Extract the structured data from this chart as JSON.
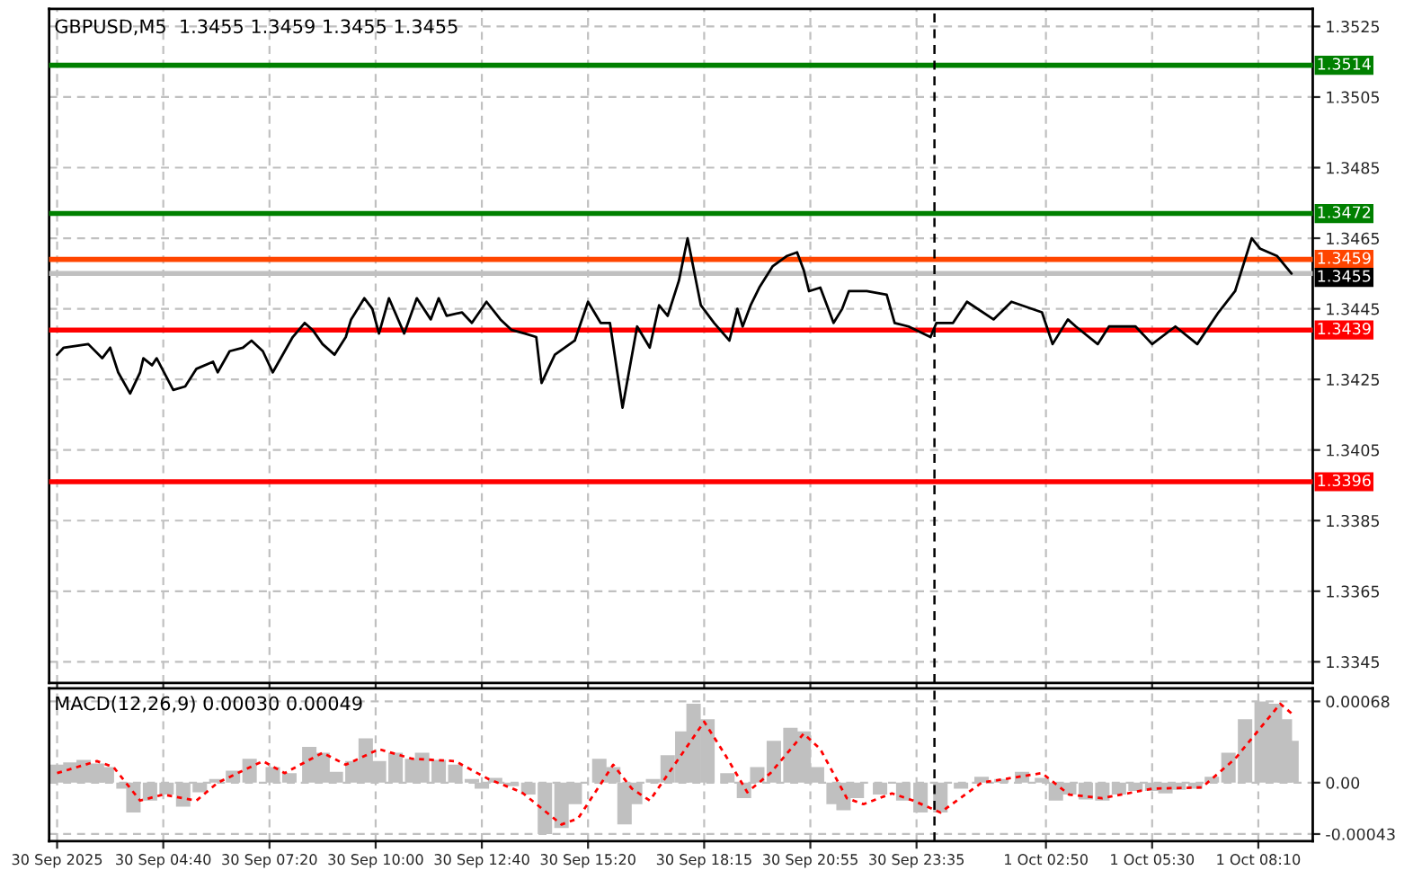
{
  "chart_data": [
    {
      "type": "line",
      "title": "GBPUSD,M5  1.3455 1.3459 1.3455 1.3455",
      "tick_labels": "y",
      "grid": true,
      "legend": false,
      "marker": "none",
      "line_style": "solid",
      "xlim": [
        "2025-09-30T01:48",
        "2025-10-01T09:32"
      ],
      "ylim": [
        1.3339,
        1.353
      ],
      "xticks": [
        {
          "value": "2025-09-30T02:00",
          "label": null
        },
        {
          "value": "2025-09-30T04:40",
          "label": null
        },
        {
          "value": "2025-09-30T07:20",
          "label": null
        },
        {
          "value": "2025-09-30T10:00",
          "label": null
        },
        {
          "value": "2025-09-30T12:40",
          "label": null
        },
        {
          "value": "2025-09-30T15:20",
          "label": null
        },
        {
          "value": "2025-09-30T18:15",
          "label": null
        },
        {
          "value": "2025-09-30T20:55",
          "label": null
        },
        {
          "value": "2025-09-30T23:35",
          "label": null
        },
        {
          "value": "2025-10-01T02:50",
          "label": null
        },
        {
          "value": "2025-10-01T05:30",
          "label": null
        },
        {
          "value": "2025-10-01T08:10",
          "label": null
        }
      ],
      "yticks": [
        1.3525,
        1.3505,
        1.3485,
        1.3465,
        1.3445,
        1.3425,
        1.3405,
        1.3385,
        1.3365,
        1.3345
      ],
      "series": [
        {
          "color": "#000000",
          "x": [
            "2025-09-30T02:00",
            "2025-09-30T02:10",
            "2025-09-30T02:47",
            "2025-09-30T03:08",
            "2025-09-30T03:20",
            "2025-09-30T03:32",
            "2025-09-30T03:50",
            "2025-09-30T04:05",
            "2025-09-30T04:10",
            "2025-09-30T04:23",
            "2025-09-30T04:30",
            "2025-09-30T04:55",
            "2025-09-30T05:13",
            "2025-09-30T05:30",
            "2025-09-30T05:55",
            "2025-09-30T06:02",
            "2025-09-30T06:20",
            "2025-09-30T06:40",
            "2025-09-30T06:53",
            "2025-09-30T07:10",
            "2025-09-30T07:25",
            "2025-09-30T07:55",
            "2025-09-30T08:13",
            "2025-09-30T08:25",
            "2025-09-30T08:40",
            "2025-09-30T08:58",
            "2025-09-30T09:15",
            "2025-09-30T09:23",
            "2025-09-30T09:43",
            "2025-09-30T09:55",
            "2025-09-30T10:05",
            "2025-09-30T10:20",
            "2025-09-30T10:43",
            "2025-09-30T11:02",
            "2025-09-30T11:23",
            "2025-09-30T11:35",
            "2025-09-30T11:47",
            "2025-09-30T12:10",
            "2025-09-30T12:25",
            "2025-09-30T12:47",
            "2025-09-30T13:08",
            "2025-09-30T13:25",
            "2025-09-30T13:45",
            "2025-09-30T14:02",
            "2025-09-30T14:10",
            "2025-09-30T14:30",
            "2025-09-30T15:00",
            "2025-09-30T15:20",
            "2025-09-30T15:39",
            "2025-09-30T15:53",
            "2025-09-30T16:12",
            "2025-09-30T16:34",
            "2025-09-30T16:53",
            "2025-09-30T17:07",
            "2025-09-30T17:20",
            "2025-09-30T17:37",
            "2025-09-30T17:50",
            "2025-09-30T18:10",
            "2025-09-30T18:30",
            "2025-09-30T18:53",
            "2025-09-30T19:05",
            "2025-09-30T19:13",
            "2025-09-30T19:25",
            "2025-09-30T19:38",
            "2025-09-30T19:58",
            "2025-09-30T20:20",
            "2025-09-30T20:35",
            "2025-09-30T20:45",
            "2025-09-30T20:53",
            "2025-09-30T21:10",
            "2025-09-30T21:30",
            "2025-09-30T21:43",
            "2025-09-30T21:53",
            "2025-09-30T22:20",
            "2025-09-30T22:50",
            "2025-09-30T23:02",
            "2025-09-30T23:23",
            "2025-09-30T23:56",
            "2025-10-01T00:05",
            "2025-10-01T00:30",
            "2025-10-01T00:51",
            "2025-10-01T01:31",
            "2025-10-01T01:58",
            "2025-10-01T02:44",
            "2025-10-01T03:00",
            "2025-10-01T03:23",
            "2025-10-01T03:35",
            "2025-10-01T04:08",
            "2025-10-01T04:25",
            "2025-10-01T05:05",
            "2025-10-01T05:30",
            "2025-10-01T06:05",
            "2025-10-01T06:38",
            "2025-10-01T07:10",
            "2025-10-01T07:35",
            "2025-10-01T08:00",
            "2025-10-01T08:13",
            "2025-10-01T08:38",
            "2025-10-01T09:00"
          ],
          "values": [
            1.3432,
            1.3434,
            1.3435,
            1.3431,
            1.3434,
            1.3427,
            1.3421,
            1.3427,
            1.3431,
            1.3429,
            1.3431,
            1.3422,
            1.3423,
            1.3428,
            1.343,
            1.3427,
            1.3433,
            1.3434,
            1.3436,
            1.3433,
            1.3427,
            1.3437,
            1.3441,
            1.3439,
            1.3435,
            1.3432,
            1.3437,
            1.3442,
            1.3448,
            1.3445,
            1.3438,
            1.3448,
            1.3438,
            1.3448,
            1.3442,
            1.3448,
            1.3443,
            1.3444,
            1.3441,
            1.3447,
            1.3442,
            1.3439,
            1.3438,
            1.3437,
            1.3424,
            1.3432,
            1.3436,
            1.3447,
            1.3441,
            1.3441,
            1.3417,
            1.344,
            1.3434,
            1.3446,
            1.3443,
            1.3453,
            1.3465,
            1.3446,
            1.3441,
            1.3436,
            1.3445,
            1.344,
            1.3446,
            1.3451,
            1.3457,
            1.346,
            1.3461,
            1.3456,
            1.345,
            1.3451,
            1.3441,
            1.3445,
            1.345,
            1.345,
            1.3449,
            1.3441,
            1.344,
            1.3437,
            1.3441,
            1.3441,
            1.3447,
            1.3442,
            1.3447,
            1.3444,
            1.3435,
            1.3442,
            1.344,
            1.3435,
            1.344,
            1.344,
            1.3435,
            1.344,
            1.3435,
            1.3444,
            1.345,
            1.3465,
            1.3462,
            1.346,
            1.3455
          ]
        }
      ],
      "ref_lines": [
        {
          "axis": "y",
          "value": 1.3514,
          "label": "1.3514",
          "color": "#008000",
          "line_style": "solid"
        },
        {
          "axis": "y",
          "value": 1.3472,
          "label": "1.3472",
          "color": "#008000",
          "line_style": "solid"
        },
        {
          "axis": "y",
          "value": 1.3459,
          "label": "1.3459",
          "color": "#ff4500",
          "line_style": "solid"
        },
        {
          "axis": "y",
          "value": 1.3455,
          "label": "1.3455",
          "color": "#c0c0c0",
          "line_style": "solid"
        },
        {
          "axis": "y",
          "value": 1.3439,
          "label": "1.3439",
          "color": "#ff0000",
          "line_style": "solid"
        },
        {
          "axis": "y",
          "value": 1.3396,
          "label": "1.3396",
          "color": "#ff0000",
          "line_style": "solid"
        },
        {
          "axis": "x",
          "value": "2025-10-01T00:02",
          "color": "#000000",
          "line_style": "dashed"
        }
      ]
    },
    {
      "type": "bar",
      "title": "MACD(12,26,9) 0.00030 0.00049",
      "grid": true,
      "legend": false,
      "xlim": [
        "2025-09-30T01:48",
        "2025-10-01T09:32"
      ],
      "ylim": [
        -0.00049,
        0.00079
      ],
      "xticks": [
        {
          "value": "2025-09-30T02:00",
          "label": "30 Sep 2025"
        },
        {
          "value": "2025-09-30T04:40",
          "label": "30 Sep 04:40"
        },
        {
          "value": "2025-09-30T07:20",
          "label": "30 Sep 07:20"
        },
        {
          "value": "2025-09-30T10:00",
          "label": "30 Sep 10:00"
        },
        {
          "value": "2025-09-30T12:40",
          "label": "30 Sep 12:40"
        },
        {
          "value": "2025-09-30T15:20",
          "label": "30 Sep 15:20"
        },
        {
          "value": "2025-09-30T18:15",
          "label": "30 Sep 18:15"
        },
        {
          "value": "2025-09-30T20:55",
          "label": "30 Sep 20:55"
        },
        {
          "value": "2025-09-30T23:35",
          "label": "30 Sep 23:35"
        },
        {
          "value": "2025-10-01T02:50",
          "label": "1 Oct 02:50"
        },
        {
          "value": "2025-10-01T05:30",
          "label": "1 Oct 05:30"
        },
        {
          "value": "2025-10-01T08:10",
          "label": "1 Oct 08:10"
        }
      ],
      "yticks": [
        {
          "value": 0.00068,
          "label": "0.00068"
        },
        {
          "value": 0,
          "label": "0.00"
        },
        {
          "value": -0.00043,
          "label": "-0.00043"
        }
      ],
      "series": [
        {
          "type": "bar",
          "color": "#c0c0c0",
          "x": [
            "2025-09-30T02:00",
            "2025-09-30T02:20",
            "2025-09-30T02:40",
            "2025-09-30T03:00",
            "2025-09-30T03:15",
            "2025-09-30T03:40",
            "2025-09-30T03:55",
            "2025-09-30T04:20",
            "2025-09-30T04:45",
            "2025-09-30T05:10",
            "2025-09-30T05:35",
            "2025-09-30T06:00",
            "2025-09-30T06:25",
            "2025-09-30T06:50",
            "2025-09-30T07:25",
            "2025-09-30T07:50",
            "2025-09-30T08:20",
            "2025-09-30T08:40",
            "2025-09-30T09:00",
            "2025-09-30T09:25",
            "2025-09-30T09:45",
            "2025-09-30T10:05",
            "2025-09-30T10:30",
            "2025-09-30T10:55",
            "2025-09-30T11:10",
            "2025-09-30T11:35",
            "2025-09-30T12:00",
            "2025-09-30T12:25",
            "2025-09-30T12:40",
            "2025-09-30T13:00",
            "2025-09-30T13:25",
            "2025-09-30T13:50",
            "2025-09-30T14:15",
            "2025-09-30T14:40",
            "2025-09-30T15:00",
            "2025-09-30T15:15",
            "2025-09-30T15:37",
            "2025-09-30T15:58",
            "2025-09-30T16:15",
            "2025-09-30T16:31",
            "2025-09-30T16:58",
            "2025-09-30T17:20",
            "2025-09-30T17:42",
            "2025-09-30T17:59",
            "2025-09-30T18:20",
            "2025-09-30T18:50",
            "2025-09-30T19:15",
            "2025-09-30T19:35",
            "2025-09-30T20:00",
            "2025-09-30T20:25",
            "2025-09-30T20:45",
            "2025-09-30T21:05",
            "2025-09-30T21:30",
            "2025-09-30T21:45",
            "2025-09-30T22:05",
            "2025-09-30T22:40",
            "2025-09-30T23:15",
            "2025-09-30T23:41",
            "2025-10-01T00:11",
            "2025-10-01T00:42",
            "2025-10-01T01:13",
            "2025-10-01T01:43",
            "2025-10-01T02:14",
            "2025-10-01T02:44",
            "2025-10-01T03:05",
            "2025-10-01T03:25",
            "2025-10-01T03:50",
            "2025-10-01T04:15",
            "2025-10-01T04:40",
            "2025-10-01T05:05",
            "2025-10-01T05:30",
            "2025-10-01T05:50",
            "2025-10-01T06:10",
            "2025-10-01T06:35",
            "2025-10-01T07:00",
            "2025-10-01T07:25",
            "2025-10-01T07:50",
            "2025-10-01T08:15",
            "2025-10-01T08:35",
            "2025-10-01T08:50",
            "2025-10-01T09:00"
          ],
          "values": [
            0.00015,
            0.00017,
            0.00019,
            0.00016,
            0.00013,
            -5e-05,
            -0.00025,
            -0.00015,
            -0.0001,
            -0.0002,
            -8e-05,
            3e-05,
            0.0001,
            0.0002,
            0.00013,
            8e-05,
            0.0003,
            0.00025,
            9e-05,
            0.00018,
            0.00037,
            0.00018,
            0.00025,
            0.0002,
            0.00025,
            0.00019,
            0.00015,
            3e-05,
            -5e-05,
            4e-05,
            -3e-05,
            -0.0001,
            -0.00043,
            -0.00038,
            -0.00018,
            0,
            0.0002,
            0.00013,
            -0.00035,
            -0.00018,
            3e-05,
            0.00023,
            0.00043,
            0.00066,
            0.00053,
            8e-05,
            -0.00013,
            0.00013,
            0.00035,
            0.00046,
            0.00043,
            0.00013,
            -0.00018,
            -0.00023,
            -0.00013,
            -0.0001,
            -0.00015,
            -0.00025,
            -0.00025,
            -5e-05,
            5e-05,
            3e-05,
            9e-05,
            4e-05,
            -0.00015,
            -0.0001,
            -0.00014,
            -0.00015,
            -0.0001,
            -7e-05,
            -7e-05,
            -9e-05,
            -6e-05,
            -5e-05,
            5e-05,
            0.00025,
            0.00053,
            0.00068,
            0.00066,
            0.00053,
            0.00035
          ]
        },
        {
          "type": "line",
          "color": "#ff0000",
          "line_style": "dotted",
          "x": [
            "2025-09-30T02:00",
            "2025-09-30T03:00",
            "2025-09-30T03:25",
            "2025-09-30T04:05",
            "2025-09-30T04:40",
            "2025-09-30T05:30",
            "2025-09-30T06:02",
            "2025-09-30T07:10",
            "2025-09-30T07:43",
            "2025-09-30T08:40",
            "2025-09-30T09:15",
            "2025-09-30T10:05",
            "2025-09-30T10:55",
            "2025-09-30T12:00",
            "2025-09-30T12:50",
            "2025-09-30T13:40",
            "2025-09-30T14:40",
            "2025-09-30T15:05",
            "2025-09-30T15:58",
            "2025-09-30T16:26",
            "2025-09-30T16:53",
            "2025-09-30T18:15",
            "2025-09-30T18:47",
            "2025-09-30T19:20",
            "2025-09-30T19:55",
            "2025-09-30T20:45",
            "2025-09-30T21:10",
            "2025-09-30T21:50",
            "2025-09-30T22:15",
            "2025-09-30T22:58",
            "2025-09-30T23:30",
            "2025-10-01T00:11",
            "2025-10-01T01:13",
            "2025-10-01T02:44",
            "2025-10-01T03:25",
            "2025-10-01T04:15",
            "2025-10-01T05:30",
            "2025-10-01T06:45",
            "2025-10-01T07:35",
            "2025-10-01T08:43",
            "2025-10-01T09:00"
          ],
          "values": [
            8e-05,
            0.00018,
            0.00013,
            -0.00015,
            -0.0001,
            -0.00015,
            0,
            0.00018,
            8e-05,
            0.00025,
            0.00015,
            0.00028,
            0.0002,
            0.00018,
            3e-05,
            -8e-05,
            -0.00035,
            -0.0003,
            0.00015,
            -5e-05,
            -0.00015,
            0.00051,
            0.00023,
            -8e-05,
            8e-05,
            0.00041,
            0.00028,
            -0.00013,
            -0.00018,
            -9e-05,
            -0.00015,
            -0.00025,
            0,
            8e-05,
            -0.0001,
            -0.00013,
            -5e-05,
            -4e-05,
            0.0002,
            0.00066,
            0.00058
          ]
        }
      ],
      "ref_lines": [
        {
          "axis": "x",
          "value": "2025-10-01T00:02",
          "color": "#000000",
          "line_style": "dashed"
        }
      ]
    }
  ]
}
